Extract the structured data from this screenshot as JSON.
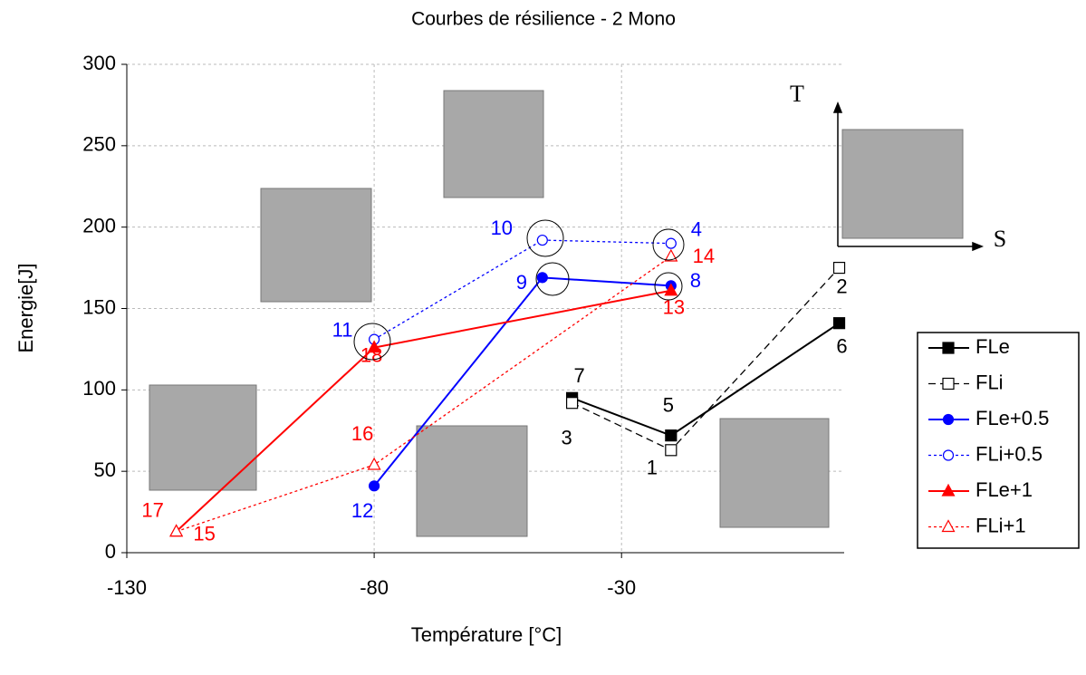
{
  "chart_data": {
    "type": "line",
    "title": "Courbes de résilience - 2 Mono",
    "x_label": "Température [°C]",
    "y_label": "Energie[J]",
    "xlim": [
      -130,
      15
    ],
    "xticks": [
      -130,
      -80,
      -30
    ],
    "ylim": [
      0,
      300
    ],
    "yticks": [
      0,
      50,
      100,
      150,
      200,
      250,
      300
    ],
    "grid": true,
    "legend": "right",
    "inset_axis_labels": [
      "T",
      "S"
    ],
    "series": [
      {
        "name": "FLe",
        "color": "#000000",
        "dash": "solid",
        "marker": "square",
        "filled": true,
        "x": [
          -40,
          -20,
          14
        ],
        "values": [
          95,
          72,
          141
        ],
        "point_labels": [
          "7",
          "5",
          "6"
        ]
      },
      {
        "name": "FLi",
        "color": "#000000",
        "dash": "dashed",
        "marker": "square",
        "filled": false,
        "x": [
          -40,
          -20,
          14
        ],
        "values": [
          92,
          63,
          175
        ],
        "point_labels": [
          "3",
          "1",
          "2"
        ]
      },
      {
        "name": "FLe+0.5",
        "color": "#0000ff",
        "dash": "solid",
        "marker": "circle",
        "filled": true,
        "x": [
          -80,
          -46,
          -20
        ],
        "values": [
          41,
          169,
          164
        ],
        "point_labels": [
          "12",
          "9",
          "8"
        ]
      },
      {
        "name": "FLi+0.5",
        "color": "#0000ff",
        "dash": "dotted",
        "marker": "circle",
        "filled": false,
        "x": [
          -80,
          -46,
          -20
        ],
        "values": [
          131,
          192,
          190
        ],
        "point_labels": [
          "11",
          "10",
          "4"
        ]
      },
      {
        "name": "FLe+1",
        "color": "#ff0000",
        "dash": "solid",
        "marker": "triangle",
        "filled": true,
        "x": [
          -120,
          -80,
          -20
        ],
        "values": [
          13,
          126,
          161
        ],
        "point_labels": [
          "17",
          "18",
          "13"
        ]
      },
      {
        "name": "FLi+1",
        "color": "#ff0000",
        "dash": "dotted",
        "marker": "triangle",
        "filled": false,
        "x": [
          -120,
          -80,
          -20
        ],
        "values": [
          13,
          54,
          182
        ],
        "point_labels": [
          "15",
          "16",
          "14"
        ]
      }
    ]
  }
}
